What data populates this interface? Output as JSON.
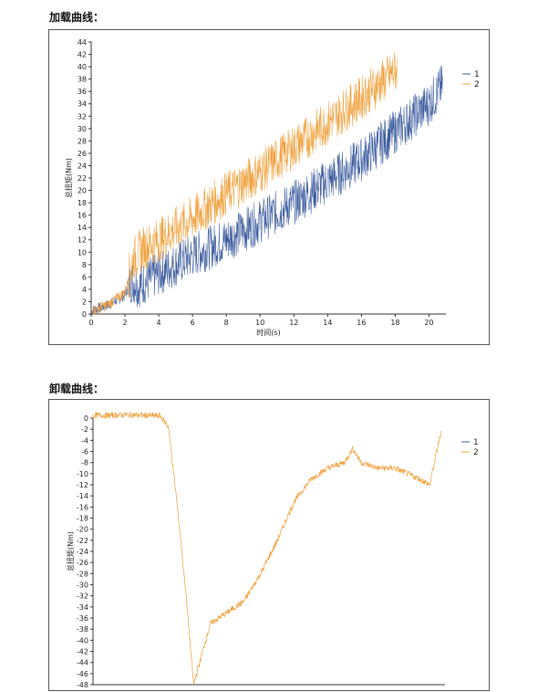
{
  "headings": {
    "loading": "加载曲线：",
    "unloading": "卸载曲线："
  },
  "colors": {
    "series1": "#3c5b9e",
    "series2": "#f0a03c",
    "axis": "#333333"
  },
  "chart_data": [
    {
      "type": "line",
      "title": "",
      "xlabel": "时间(s)",
      "ylabel": "总扭矩(Nm)",
      "xlim": [
        0,
        21
      ],
      "ylim": [
        0,
        44
      ],
      "xticks": [
        0,
        2,
        4,
        6,
        8,
        10,
        12,
        14,
        16,
        18,
        20
      ],
      "yticks": [
        0,
        2,
        4,
        6,
        8,
        10,
        12,
        14,
        16,
        18,
        20,
        22,
        24,
        26,
        28,
        30,
        32,
        34,
        36,
        38,
        40,
        42,
        44
      ],
      "legend": "top-right",
      "series": [
        {
          "name": "1",
          "color": "#3c5b9e",
          "x": [
            0,
            1,
            2,
            2.4,
            2.8,
            4,
            6,
            8,
            10,
            12,
            14,
            16,
            18,
            20,
            20.8
          ],
          "y": [
            0.5,
            1.5,
            3.0,
            5.5,
            4.5,
            6.5,
            9.5,
            12.0,
            15.0,
            18.0,
            21.5,
            25.0,
            29.5,
            34.0,
            37.0
          ]
        },
        {
          "name": "2",
          "color": "#f0a03c",
          "x": [
            0,
            1,
            2,
            2.5,
            3,
            4,
            6,
            8,
            10,
            12,
            14,
            16,
            18.1
          ],
          "y": [
            0.5,
            1.5,
            3.5,
            9.0,
            10.5,
            12.0,
            15.5,
            19.5,
            23.0,
            27.0,
            31.0,
            35.0,
            39.5
          ]
        }
      ]
    },
    {
      "type": "line",
      "title": "",
      "xlabel": "",
      "ylabel": "总扭矩(Nm)",
      "xlim": [
        0,
        21
      ],
      "ylim": [
        -48,
        0
      ],
      "yticks": [
        0,
        -2,
        -4,
        -6,
        -8,
        -10,
        -12,
        -14,
        -16,
        -18,
        -20,
        -22,
        -24,
        -26,
        -28,
        -30,
        -32,
        -34,
        -36,
        -38,
        -40,
        -42,
        -44,
        -46,
        -48
      ],
      "legend": "top-right",
      "series": [
        {
          "name": "1",
          "color": "#3c5b9e",
          "x": [],
          "y": []
        },
        {
          "name": "2",
          "color": "#f0a03c",
          "x": [
            0,
            1,
            2,
            3,
            4,
            4.5,
            5,
            5.5,
            6,
            7,
            8,
            9,
            10,
            11,
            12,
            13,
            14,
            15,
            15.5,
            16,
            16.5,
            17,
            18,
            19.5,
            20.1,
            20.5,
            20.8
          ],
          "y": [
            0.5,
            0.5,
            0.6,
            0.5,
            0.4,
            -1.5,
            -15,
            -30,
            -48,
            -37,
            -35,
            -33,
            -28,
            -22,
            -15,
            -11,
            -9,
            -8,
            -5.5,
            -8,
            -8.5,
            -9,
            -9,
            -11,
            -12,
            -6,
            -2
          ]
        }
      ]
    }
  ]
}
